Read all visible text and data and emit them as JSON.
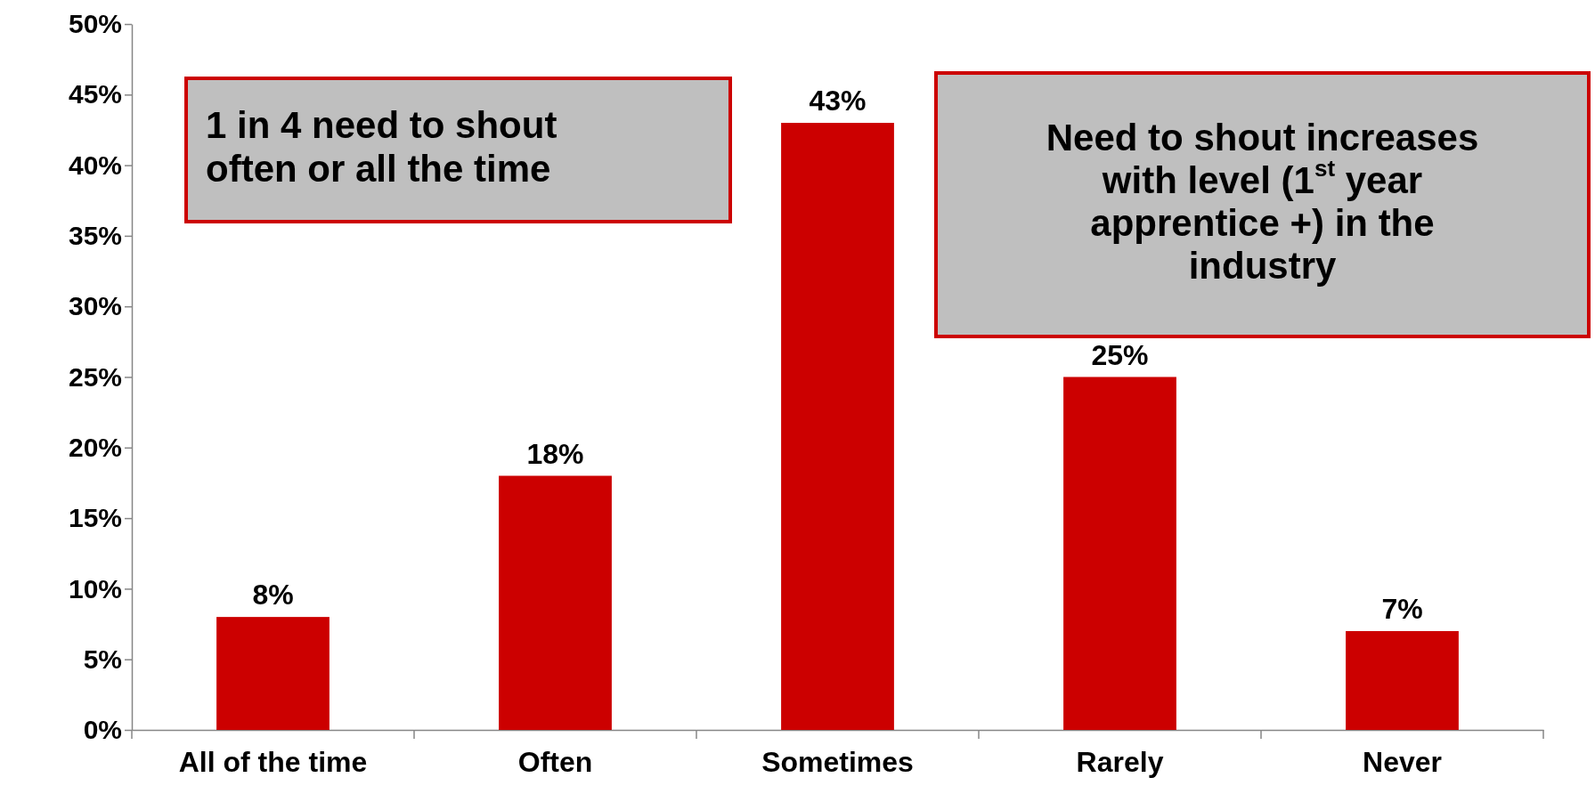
{
  "chart_data": {
    "type": "bar",
    "categories": [
      "All of the time",
      "Often",
      "Sometimes",
      "Rarely",
      "Never"
    ],
    "values": [
      8,
      18,
      43,
      25,
      7
    ],
    "value_labels": [
      "8%",
      "18%",
      "43%",
      "25%",
      "7%"
    ],
    "color": "#cc0000",
    "ylim": [
      0,
      50
    ],
    "yticks": [
      {
        "value": 0,
        "label": "0%"
      },
      {
        "value": 5,
        "label": "5%"
      },
      {
        "value": 10,
        "label": "10%"
      },
      {
        "value": 15,
        "label": "15%"
      },
      {
        "value": 20,
        "label": "20%"
      },
      {
        "value": 25,
        "label": "25%"
      },
      {
        "value": 30,
        "label": "30%"
      },
      {
        "value": 35,
        "label": "35%"
      },
      {
        "value": 40,
        "label": "40%"
      },
      {
        "value": 45,
        "label": "45%"
      },
      {
        "value": 50,
        "label": "50%"
      }
    ],
    "grid": false,
    "annotations": [
      "1 in 4 need to shout often or all the time",
      "Need to shout increases with level (1$^{st}$ year apprentice +) in the industry"
    ]
  }
}
